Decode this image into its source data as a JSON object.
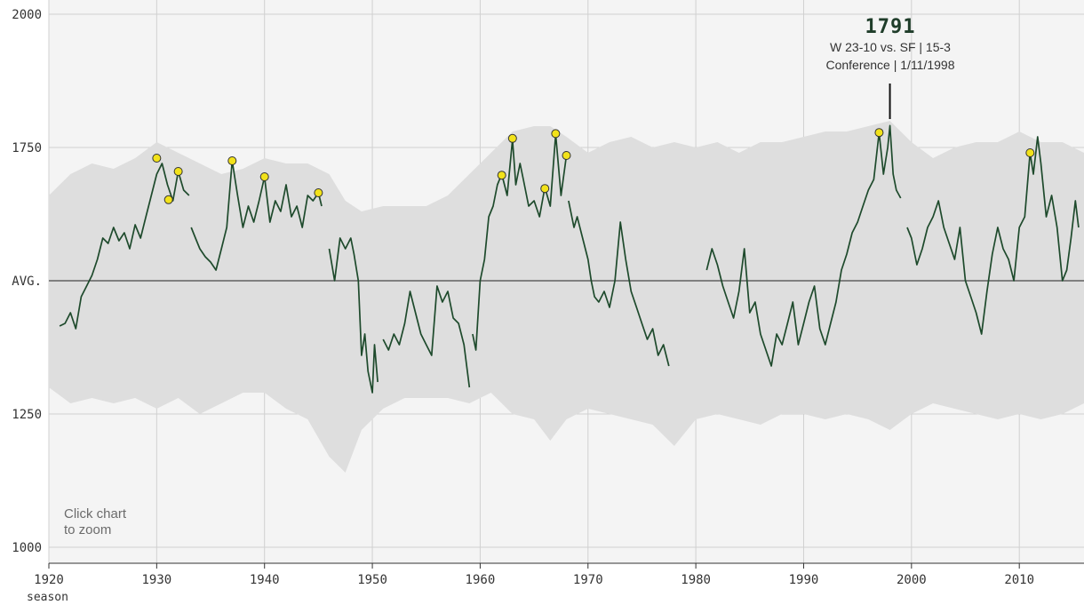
{
  "chart_data": {
    "type": "line",
    "title": "",
    "xlabel": "season",
    "ylabel": "",
    "xlim": [
      1920,
      2016
    ],
    "ylim": [
      1000,
      2000
    ],
    "x_ticks": [
      1920,
      1930,
      1940,
      1950,
      1960,
      1970,
      1980,
      1990,
      2000,
      2010
    ],
    "y_ticks": [
      {
        "value": 1000,
        "label": "1000"
      },
      {
        "value": 1250,
        "label": "1250"
      },
      {
        "value": 1500,
        "label": "AVG."
      },
      {
        "value": 1750,
        "label": "1750"
      },
      {
        "value": 2000,
        "label": "2000"
      }
    ],
    "grid": true,
    "colors": {
      "line": "#1e4a2c",
      "band": "#dedede",
      "plot_bg": "#f4f4f4",
      "grid": "#d0d0d0",
      "marker": "#f2e21a"
    },
    "band": [
      [
        1920.0,
        1300,
        1660
      ],
      [
        1922.0,
        1270,
        1700
      ],
      [
        1924.0,
        1280,
        1720
      ],
      [
        1926.0,
        1270,
        1710
      ],
      [
        1928.0,
        1280,
        1730
      ],
      [
        1930.0,
        1260,
        1760
      ],
      [
        1932.0,
        1280,
        1740
      ],
      [
        1934.0,
        1250,
        1720
      ],
      [
        1936.0,
        1270,
        1700
      ],
      [
        1938.0,
        1290,
        1710
      ],
      [
        1940.0,
        1290,
        1730
      ],
      [
        1942.0,
        1260,
        1720
      ],
      [
        1944.0,
        1240,
        1720
      ],
      [
        1946.0,
        1170,
        1700
      ],
      [
        1947.5,
        1140,
        1650
      ],
      [
        1949.0,
        1220,
        1630
      ],
      [
        1951.0,
        1260,
        1640
      ],
      [
        1953.0,
        1280,
        1640
      ],
      [
        1955.0,
        1280,
        1640
      ],
      [
        1957.0,
        1280,
        1660
      ],
      [
        1959.0,
        1270,
        1700
      ],
      [
        1961.0,
        1290,
        1740
      ],
      [
        1963.0,
        1250,
        1780
      ],
      [
        1965.0,
        1240,
        1790
      ],
      [
        1966.5,
        1200,
        1790
      ],
      [
        1968.0,
        1240,
        1770
      ],
      [
        1970.0,
        1260,
        1740
      ],
      [
        1972.0,
        1250,
        1760
      ],
      [
        1974.0,
        1240,
        1770
      ],
      [
        1976.0,
        1230,
        1750
      ],
      [
        1978.0,
        1190,
        1760
      ],
      [
        1980.0,
        1240,
        1750
      ],
      [
        1982.0,
        1250,
        1760
      ],
      [
        1984.0,
        1240,
        1740
      ],
      [
        1986.0,
        1230,
        1760
      ],
      [
        1988.0,
        1250,
        1760
      ],
      [
        1990.0,
        1250,
        1770
      ],
      [
        1992.0,
        1240,
        1780
      ],
      [
        1994.0,
        1250,
        1780
      ],
      [
        1996.0,
        1240,
        1790
      ],
      [
        1998.0,
        1220,
        1800
      ],
      [
        2000.0,
        1250,
        1760
      ],
      [
        2002.0,
        1270,
        1730
      ],
      [
        2004.0,
        1260,
        1750
      ],
      [
        2006.0,
        1250,
        1760
      ],
      [
        2008.0,
        1240,
        1760
      ],
      [
        2010.0,
        1250,
        1780
      ],
      [
        2012.0,
        1240,
        1760
      ],
      [
        2014.0,
        1250,
        1760
      ],
      [
        2016.0,
        1270,
        1740
      ]
    ],
    "series": [
      {
        "values": [
          [
            1921.0,
            1415
          ],
          [
            1921.5,
            1420
          ],
          [
            1922.0,
            1440
          ],
          [
            1922.5,
            1410
          ],
          [
            1923.0,
            1470
          ],
          [
            1923.5,
            1490
          ],
          [
            1924.0,
            1510
          ],
          [
            1924.5,
            1540
          ],
          [
            1925.0,
            1580
          ],
          [
            1925.5,
            1570
          ],
          [
            1926.0,
            1600
          ],
          [
            1926.5,
            1575
          ],
          [
            1927.0,
            1590
          ],
          [
            1927.5,
            1560
          ],
          [
            1928.0,
            1605
          ],
          [
            1928.5,
            1580
          ],
          [
            1929.0,
            1620
          ],
          [
            1929.5,
            1660
          ],
          [
            1930.0,
            1700
          ],
          [
            1930.5,
            1720
          ],
          [
            1931.0,
            1680
          ],
          [
            1931.5,
            1650
          ],
          [
            1932.0,
            1705
          ],
          [
            1932.5,
            1670
          ],
          [
            1933.0,
            1660
          ]
        ]
      },
      {
        "values": [
          [
            1933.2,
            1600
          ],
          [
            1933.6,
            1580
          ],
          [
            1934.0,
            1560
          ],
          [
            1934.5,
            1545
          ],
          [
            1935.0,
            1535
          ],
          [
            1935.5,
            1520
          ],
          [
            1936.0,
            1560
          ],
          [
            1936.5,
            1600
          ],
          [
            1937.0,
            1725
          ],
          [
            1937.5,
            1660
          ],
          [
            1938.0,
            1600
          ],
          [
            1938.5,
            1640
          ],
          [
            1939.0,
            1610
          ],
          [
            1939.5,
            1650
          ],
          [
            1940.0,
            1695
          ],
          [
            1940.5,
            1610
          ],
          [
            1941.0,
            1650
          ],
          [
            1941.5,
            1630
          ],
          [
            1942.0,
            1680
          ],
          [
            1942.5,
            1620
          ],
          [
            1943.0,
            1640
          ],
          [
            1943.5,
            1600
          ],
          [
            1944.0,
            1660
          ],
          [
            1944.5,
            1650
          ],
          [
            1945.0,
            1665
          ],
          [
            1945.3,
            1640
          ]
        ]
      },
      {
        "values": [
          [
            1946.0,
            1560
          ],
          [
            1946.5,
            1500
          ],
          [
            1947.0,
            1580
          ],
          [
            1947.5,
            1560
          ],
          [
            1948.0,
            1580
          ],
          [
            1948.3,
            1550
          ],
          [
            1948.7,
            1500
          ],
          [
            1949.0,
            1360
          ],
          [
            1949.3,
            1400
          ],
          [
            1949.6,
            1330
          ],
          [
            1950.0,
            1290
          ],
          [
            1950.2,
            1380
          ],
          [
            1950.5,
            1310
          ]
        ]
      },
      {
        "values": [
          [
            1951.0,
            1390
          ],
          [
            1951.5,
            1370
          ],
          [
            1952.0,
            1400
          ],
          [
            1952.5,
            1380
          ],
          [
            1953.0,
            1420
          ],
          [
            1953.5,
            1480
          ],
          [
            1954.0,
            1440
          ],
          [
            1954.5,
            1400
          ],
          [
            1955.0,
            1380
          ],
          [
            1955.5,
            1360
          ],
          [
            1956.0,
            1490
          ],
          [
            1956.5,
            1460
          ],
          [
            1957.0,
            1480
          ],
          [
            1957.5,
            1430
          ],
          [
            1958.0,
            1420
          ],
          [
            1958.5,
            1380
          ],
          [
            1959.0,
            1300
          ]
        ]
      },
      {
        "values": [
          [
            1959.3,
            1400
          ],
          [
            1959.6,
            1370
          ],
          [
            1960.0,
            1500
          ],
          [
            1960.4,
            1540
          ],
          [
            1960.8,
            1620
          ],
          [
            1961.2,
            1640
          ],
          [
            1961.6,
            1680
          ],
          [
            1962.0,
            1700
          ],
          [
            1962.5,
            1660
          ],
          [
            1963.0,
            1765
          ],
          [
            1963.3,
            1680
          ],
          [
            1963.7,
            1720
          ],
          [
            1964.0,
            1690
          ],
          [
            1964.5,
            1640
          ],
          [
            1965.0,
            1650
          ],
          [
            1965.5,
            1620
          ],
          [
            1966.0,
            1675
          ],
          [
            1966.5,
            1640
          ],
          [
            1967.0,
            1775
          ],
          [
            1967.5,
            1660
          ],
          [
            1968.0,
            1735
          ]
        ]
      },
      {
        "values": [
          [
            1968.2,
            1650
          ],
          [
            1968.7,
            1600
          ],
          [
            1969.0,
            1620
          ],
          [
            1969.5,
            1580
          ],
          [
            1970.0,
            1540
          ],
          [
            1970.3,
            1500
          ],
          [
            1970.6,
            1470
          ],
          [
            1971.0,
            1460
          ],
          [
            1971.5,
            1480
          ],
          [
            1972.0,
            1450
          ],
          [
            1972.5,
            1500
          ],
          [
            1973.0,
            1610
          ],
          [
            1973.5,
            1540
          ],
          [
            1974.0,
            1480
          ],
          [
            1974.5,
            1450
          ],
          [
            1975.0,
            1420
          ],
          [
            1975.5,
            1390
          ],
          [
            1976.0,
            1410
          ],
          [
            1976.5,
            1360
          ],
          [
            1977.0,
            1380
          ],
          [
            1977.5,
            1340
          ]
        ]
      },
      {
        "values": [
          [
            1981.0,
            1520
          ],
          [
            1981.5,
            1560
          ],
          [
            1982.0,
            1530
          ],
          [
            1982.5,
            1490
          ],
          [
            1983.0,
            1460
          ],
          [
            1983.5,
            1430
          ],
          [
            1984.0,
            1480
          ],
          [
            1984.5,
            1560
          ],
          [
            1985.0,
            1440
          ],
          [
            1985.5,
            1460
          ],
          [
            1986.0,
            1400
          ],
          [
            1986.5,
            1370
          ],
          [
            1987.0,
            1340
          ],
          [
            1987.5,
            1400
          ],
          [
            1988.0,
            1380
          ],
          [
            1988.5,
            1420
          ],
          [
            1989.0,
            1460
          ],
          [
            1989.5,
            1380
          ],
          [
            1990.0,
            1420
          ],
          [
            1990.5,
            1460
          ],
          [
            1991.0,
            1490
          ],
          [
            1991.5,
            1410
          ],
          [
            1992.0,
            1380
          ],
          [
            1992.5,
            1420
          ],
          [
            1993.0,
            1460
          ],
          [
            1993.5,
            1520
          ],
          [
            1994.0,
            1550
          ],
          [
            1994.5,
            1590
          ],
          [
            1995.0,
            1610
          ],
          [
            1995.5,
            1640
          ],
          [
            1996.0,
            1670
          ],
          [
            1996.5,
            1690
          ],
          [
            1997.0,
            1778
          ],
          [
            1997.4,
            1700
          ],
          [
            1997.8,
            1750
          ],
          [
            1998.0,
            1791
          ],
          [
            1998.3,
            1700
          ],
          [
            1998.6,
            1670
          ],
          [
            1999.0,
            1655
          ]
        ]
      },
      {
        "values": [
          [
            1999.6,
            1600
          ],
          [
            2000.0,
            1580
          ],
          [
            2000.5,
            1530
          ],
          [
            2001.0,
            1560
          ],
          [
            2001.5,
            1600
          ],
          [
            2002.0,
            1620
          ],
          [
            2002.5,
            1650
          ],
          [
            2003.0,
            1600
          ],
          [
            2003.5,
            1570
          ],
          [
            2004.0,
            1540
          ],
          [
            2004.5,
            1600
          ],
          [
            2005.0,
            1500
          ],
          [
            2005.5,
            1470
          ],
          [
            2006.0,
            1440
          ],
          [
            2006.5,
            1400
          ],
          [
            2007.0,
            1480
          ],
          [
            2007.5,
            1550
          ],
          [
            2008.0,
            1600
          ],
          [
            2008.5,
            1560
          ],
          [
            2009.0,
            1540
          ],
          [
            2009.5,
            1500
          ],
          [
            2010.0,
            1600
          ],
          [
            2010.5,
            1620
          ],
          [
            2011.0,
            1740
          ],
          [
            2011.3,
            1700
          ],
          [
            2011.7,
            1770
          ],
          [
            2012.0,
            1720
          ],
          [
            2012.5,
            1620
          ],
          [
            2013.0,
            1660
          ],
          [
            2013.5,
            1600
          ],
          [
            2014.0,
            1500
          ],
          [
            2014.4,
            1520
          ],
          [
            2014.8,
            1580
          ],
          [
            2015.2,
            1650
          ],
          [
            2015.5,
            1600
          ]
        ]
      }
    ],
    "markers": [
      {
        "x": 1930.0,
        "y": 1730
      },
      {
        "x": 1931.1,
        "y": 1652
      },
      {
        "x": 1932.0,
        "y": 1705
      },
      {
        "x": 1937.0,
        "y": 1725
      },
      {
        "x": 1940.0,
        "y": 1695
      },
      {
        "x": 1945.0,
        "y": 1665
      },
      {
        "x": 1962.0,
        "y": 1698
      },
      {
        "x": 1963.0,
        "y": 1767
      },
      {
        "x": 1966.0,
        "y": 1673
      },
      {
        "x": 1967.0,
        "y": 1776
      },
      {
        "x": 1968.0,
        "y": 1735
      },
      {
        "x": 1997.0,
        "y": 1778
      },
      {
        "x": 2011.0,
        "y": 1740
      }
    ],
    "annotation": {
      "x": 1998.0,
      "y": 1791,
      "value": "1791",
      "line1": "W 23-10 vs. SF | 15-3",
      "line2": "Conference | 1/11/1998"
    }
  },
  "hint": {
    "line1": "Click chart",
    "line2": "to zoom"
  }
}
